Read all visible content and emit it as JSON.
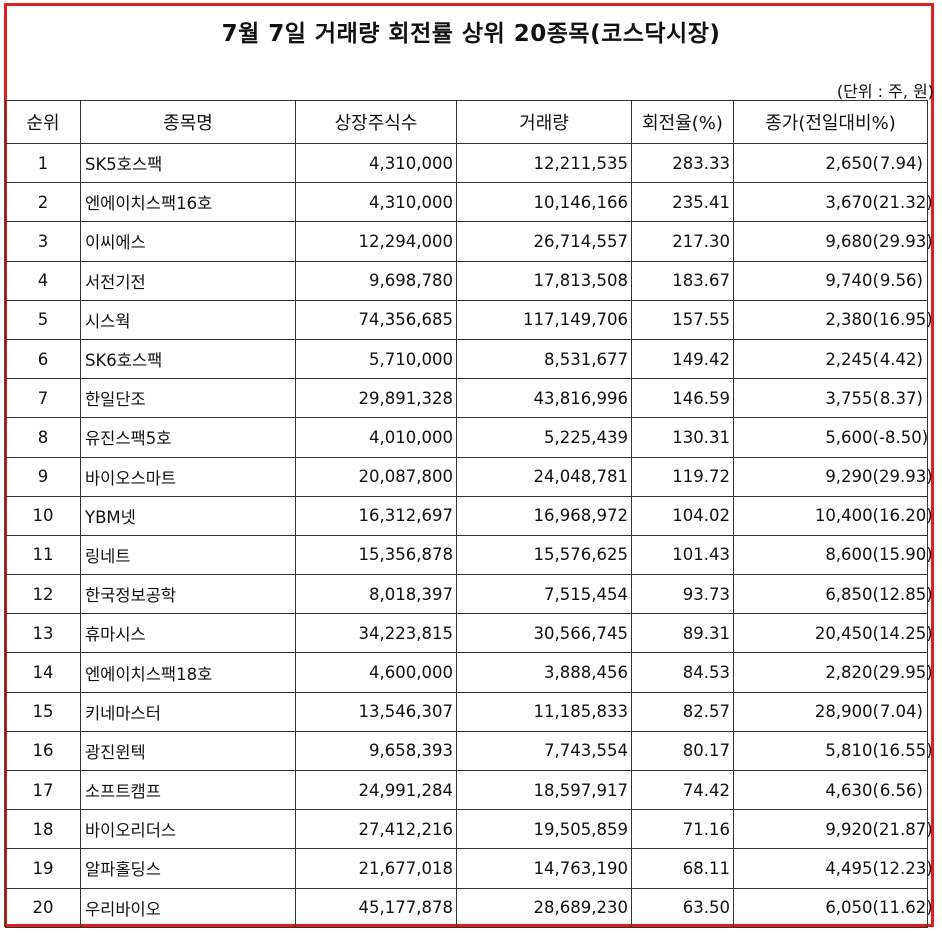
{
  "title": "7월 7일 거래량 회전률 상위 20종목(코스닥시장)",
  "unit_note": "(단위 : 주, 원)",
  "colors": {
    "frame_border": "#e01e1e",
    "grid": "#333333"
  },
  "columns": [
    "순위",
    "종목명",
    "상장주식수",
    "거래량",
    "회전율(%)",
    "종가(전일대비%)"
  ],
  "rows": [
    {
      "rank": "1",
      "name": "SK5호스팩",
      "listed": "4,310,000",
      "volume": "12,211,535",
      "turnover": "283.33",
      "price": "2,650(",
      "change": "7.94)"
    },
    {
      "rank": "2",
      "name": "엔에이치스팩16호",
      "listed": "4,310,000",
      "volume": "10,146,166",
      "turnover": "235.41",
      "price": "3,670(",
      "change": "21.32)"
    },
    {
      "rank": "3",
      "name": "이씨에스",
      "listed": "12,294,000",
      "volume": "26,714,557",
      "turnover": "217.30",
      "price": "9,680(",
      "change": "29.93)"
    },
    {
      "rank": "4",
      "name": "서전기전",
      "listed": "9,698,780",
      "volume": "17,813,508",
      "turnover": "183.67",
      "price": "9,740(",
      "change": "9.56)"
    },
    {
      "rank": "5",
      "name": "시스웍",
      "listed": "74,356,685",
      "volume": "117,149,706",
      "turnover": "157.55",
      "price": "2,380(",
      "change": "16.95)"
    },
    {
      "rank": "6",
      "name": "SK6호스팩",
      "listed": "5,710,000",
      "volume": "8,531,677",
      "turnover": "149.42",
      "price": "2,245(",
      "change": "4.42)"
    },
    {
      "rank": "7",
      "name": "한일단조",
      "listed": "29,891,328",
      "volume": "43,816,996",
      "turnover": "146.59",
      "price": "3,755(",
      "change": "8.37)"
    },
    {
      "rank": "8",
      "name": "유진스팩5호",
      "listed": "4,010,000",
      "volume": "5,225,439",
      "turnover": "130.31",
      "price": "5,600(",
      "change": "-8.50)"
    },
    {
      "rank": "9",
      "name": "바이오스마트",
      "listed": "20,087,800",
      "volume": "24,048,781",
      "turnover": "119.72",
      "price": "9,290(",
      "change": "29.93)"
    },
    {
      "rank": "10",
      "name": "YBM넷",
      "listed": "16,312,697",
      "volume": "16,968,972",
      "turnover": "104.02",
      "price": "10,400(",
      "change": "16.20)"
    },
    {
      "rank": "11",
      "name": "링네트",
      "listed": "15,356,878",
      "volume": "15,576,625",
      "turnover": "101.43",
      "price": "8,600(",
      "change": "15.90)"
    },
    {
      "rank": "12",
      "name": "한국정보공학",
      "listed": "8,018,397",
      "volume": "7,515,454",
      "turnover": "93.73",
      "price": "6,850(",
      "change": "12.85)"
    },
    {
      "rank": "13",
      "name": "휴마시스",
      "listed": "34,223,815",
      "volume": "30,566,745",
      "turnover": "89.31",
      "price": "20,450(",
      "change": "14.25)"
    },
    {
      "rank": "14",
      "name": "엔에이치스팩18호",
      "listed": "4,600,000",
      "volume": "3,888,456",
      "turnover": "84.53",
      "price": "2,820(",
      "change": "29.95)"
    },
    {
      "rank": "15",
      "name": "키네마스터",
      "listed": "13,546,307",
      "volume": "11,185,833",
      "turnover": "82.57",
      "price": "28,900(",
      "change": "7.04)"
    },
    {
      "rank": "16",
      "name": "광진윈텍",
      "listed": "9,658,393",
      "volume": "7,743,554",
      "turnover": "80.17",
      "price": "5,810(",
      "change": "16.55)"
    },
    {
      "rank": "17",
      "name": "소프트캠프",
      "listed": "24,991,284",
      "volume": "18,597,917",
      "turnover": "74.42",
      "price": "4,630(",
      "change": "6.56)"
    },
    {
      "rank": "18",
      "name": "바이오리더스",
      "listed": "27,412,216",
      "volume": "19,505,859",
      "turnover": "71.16",
      "price": "9,920(",
      "change": "21.87)"
    },
    {
      "rank": "19",
      "name": "알파홀딩스",
      "listed": "21,677,018",
      "volume": "14,763,190",
      "turnover": "68.11",
      "price": "4,495(",
      "change": "12.23)"
    },
    {
      "rank": "20",
      "name": "우리바이오",
      "listed": "45,177,878",
      "volume": "28,689,230",
      "turnover": "63.50",
      "price": "6,050(",
      "change": "11.62)"
    }
  ]
}
